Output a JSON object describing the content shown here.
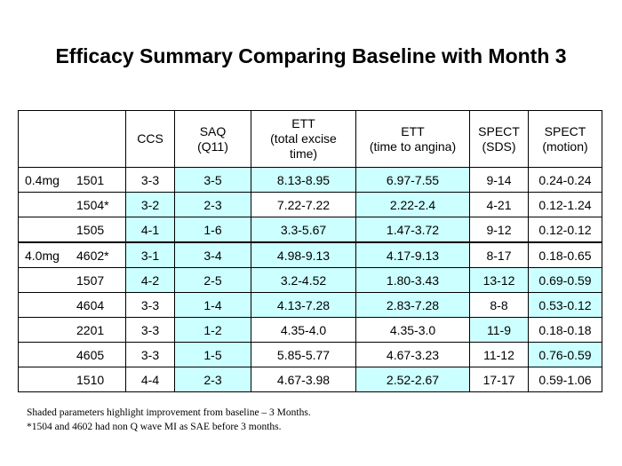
{
  "title": "Efficacy Summary Comparing Baseline with Month 3",
  "columns": [
    {
      "lines": [
        ""
      ]
    },
    {
      "lines": [
        "CCS"
      ]
    },
    {
      "lines": [
        "SAQ",
        "(Q11)"
      ]
    },
    {
      "lines": [
        "ETT",
        "(total excise",
        "time)"
      ]
    },
    {
      "lines": [
        "ETT",
        "(time to angina)"
      ]
    },
    {
      "lines": [
        "SPECT",
        "(SDS)"
      ]
    },
    {
      "lines": [
        "SPECT",
        "(motion)"
      ]
    }
  ],
  "rows": [
    {
      "group": "0.4mg",
      "patient": "1501",
      "values": [
        "3-3",
        "3-5",
        "8.13-8.95",
        "6.97-7.55",
        "9-14",
        "0.24-0.24"
      ],
      "shaded": [
        false,
        true,
        true,
        true,
        false,
        false
      ]
    },
    {
      "group": "",
      "patient": "1504*",
      "values": [
        "3-2",
        "2-3",
        "7.22-7.22",
        "2.22-2.4",
        "4-21",
        "0.12-1.24"
      ],
      "shaded": [
        true,
        true,
        false,
        true,
        false,
        false
      ]
    },
    {
      "group": "",
      "patient": "1505",
      "values": [
        "4-1",
        "1-6",
        "3.3-5.67",
        "1.47-3.72",
        "9-12",
        "0.12-0.12"
      ],
      "shaded": [
        true,
        true,
        true,
        true,
        false,
        false
      ]
    },
    {
      "group": "4.0mg",
      "patient": "4602*",
      "values": [
        "3-1",
        "3-4",
        "4.98-9.13",
        "4.17-9.13",
        "8-17",
        "0.18-0.65"
      ],
      "shaded": [
        true,
        true,
        true,
        true,
        false,
        false
      ]
    },
    {
      "group": "",
      "patient": "1507",
      "values": [
        "4-2",
        "2-5",
        "3.2-4.52",
        "1.80-3.43",
        "13-12",
        "0.69-0.59"
      ],
      "shaded": [
        true,
        true,
        true,
        true,
        true,
        true
      ]
    },
    {
      "group": "",
      "patient": "4604",
      "values": [
        "3-3",
        "1-4",
        "4.13-7.28",
        "2.83-7.28",
        "8-8",
        "0.53-0.12"
      ],
      "shaded": [
        false,
        true,
        true,
        true,
        false,
        true
      ]
    },
    {
      "group": "",
      "patient": "2201",
      "values": [
        "3-3",
        "1-2",
        "4.35-4.0",
        "4.35-3.0",
        "11-9",
        "0.18-0.18"
      ],
      "shaded": [
        false,
        true,
        false,
        false,
        true,
        false
      ]
    },
    {
      "group": "",
      "patient": "4605",
      "values": [
        "3-3",
        "1-5",
        "5.85-5.77",
        "4.67-3.23",
        "11-12",
        "0.76-0.59"
      ],
      "shaded": [
        false,
        true,
        false,
        false,
        false,
        true
      ]
    },
    {
      "group": "",
      "patient": "1510",
      "values": [
        "4-4",
        "2-3",
        "4.67-3.98",
        "2.52-2.67",
        "17-17",
        "0.59-1.06"
      ],
      "shaded": [
        false,
        true,
        false,
        true,
        false,
        false
      ]
    }
  ],
  "footnotes": [
    "Shaded parameters highlight improvement from baseline – 3 Months.",
    "*1504 and 4602 had non Q wave MI as SAE before 3 months."
  ],
  "colors": {
    "shade": "#ccffff",
    "border": "#000000"
  }
}
